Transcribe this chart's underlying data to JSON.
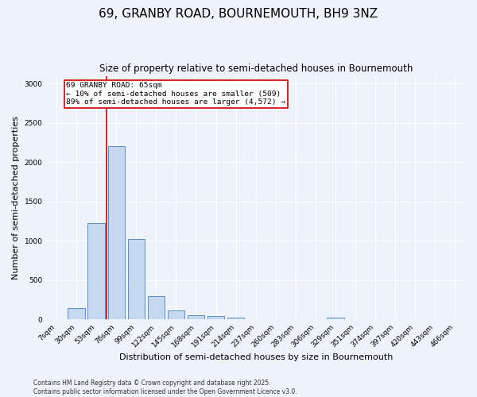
{
  "title": "69, GRANBY ROAD, BOURNEMOUTH, BH9 3NZ",
  "subtitle": "Size of property relative to semi-detached houses in Bournemouth",
  "xlabel": "Distribution of semi-detached houses by size in Bournemouth",
  "ylabel": "Number of semi-detached properties",
  "categories": [
    "7sqm",
    "30sqm",
    "53sqm",
    "76sqm",
    "99sqm",
    "122sqm",
    "145sqm",
    "168sqm",
    "191sqm",
    "214sqm",
    "237sqm",
    "260sqm",
    "283sqm",
    "306sqm",
    "329sqm",
    "351sqm",
    "374sqm",
    "397sqm",
    "420sqm",
    "443sqm",
    "466sqm"
  ],
  "values": [
    10,
    150,
    1230,
    2210,
    1030,
    300,
    115,
    55,
    45,
    30,
    0,
    0,
    0,
    0,
    25,
    0,
    0,
    0,
    0,
    0,
    0
  ],
  "bar_color": "#c5d8f0",
  "bar_edge_color": "#5b8fc9",
  "vline_color": "#cc0000",
  "vline_pos": 2.5,
  "annotation_text": "69 GRANBY ROAD: 65sqm\n← 10% of semi-detached houses are smaller (509)\n89% of semi-detached houses are larger (4,572) →",
  "annotation_box_color": "#cc0000",
  "ylim": [
    0,
    3100
  ],
  "yticks": [
    0,
    500,
    1000,
    1500,
    2000,
    2500,
    3000
  ],
  "footnote": "Contains HM Land Registry data © Crown copyright and database right 2025.\nContains public sector information licensed under the Open Government Licence v3.0.",
  "bg_color": "#eef2fb",
  "grid_color": "#ffffff",
  "title_fontsize": 11,
  "subtitle_fontsize": 8.5,
  "label_fontsize": 8,
  "tick_fontsize": 6.5,
  "footnote_fontsize": 5.5
}
